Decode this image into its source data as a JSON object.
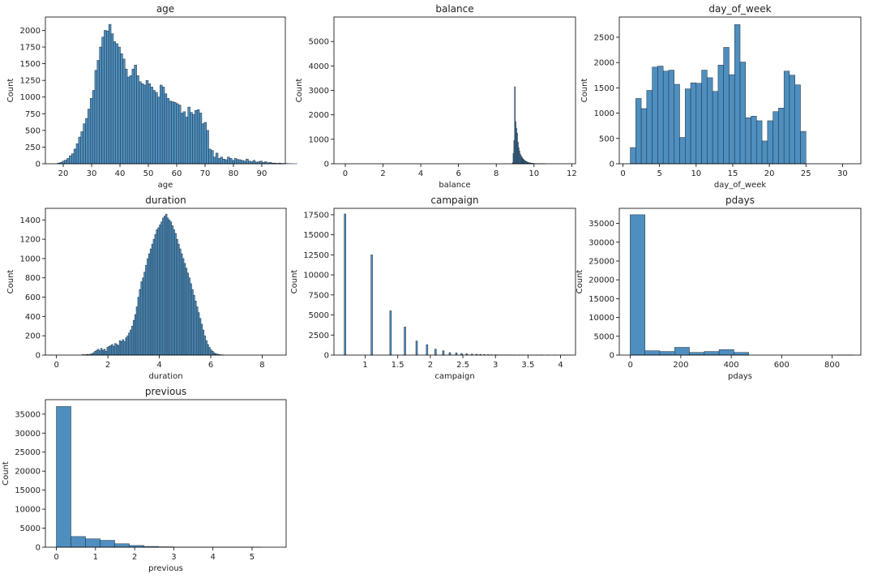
{
  "figure": {
    "style": {
      "bar_fill": "#4e8fbf",
      "bar_edge": "#1f2f3f",
      "axis_color": "#000000",
      "text_color": "#222222"
    }
  },
  "chart_data": [
    {
      "type": "bar",
      "title": "age",
      "xlabel": "age",
      "ylabel": "Count",
      "xlim": [
        13.7,
        98.3
      ],
      "ylim": [
        0,
        2200
      ],
      "xticks": [
        20,
        30,
        40,
        50,
        60,
        70,
        80,
        90
      ],
      "yticks": [
        0,
        250,
        500,
        750,
        1000,
        1250,
        1500,
        1750,
        2000
      ],
      "bins": {
        "x_start": 18,
        "width": 0.82,
        "counts": [
          10,
          20,
          40,
          55,
          80,
          120,
          150,
          220,
          300,
          400,
          480,
          600,
          680,
          820,
          980,
          1100,
          1400,
          1550,
          1750,
          1900,
          2000,
          1990,
          2090,
          1950,
          1830,
          1800,
          1750,
          1650,
          1570,
          1420,
          1300,
          1320,
          1420,
          1480,
          1320,
          1230,
          1200,
          1180,
          1250,
          1200,
          1150,
          1100,
          1070,
          1000,
          1180,
          1150,
          1050,
          980,
          940,
          930,
          920,
          900,
          880,
          760,
          780,
          700,
          850,
          770,
          740,
          800,
          810,
          760,
          600,
          620,
          500,
          220,
          200,
          100,
          160,
          80,
          100,
          70,
          60,
          100,
          80,
          50,
          80,
          65,
          60,
          50,
          40,
          70,
          40,
          30,
          50,
          25,
          30,
          40,
          20,
          30,
          15,
          20,
          10,
          10,
          5,
          10,
          5,
          5,
          5,
          3,
          2,
          1,
          1
        ]
      }
    },
    {
      "type": "bar",
      "title": "balance",
      "xlabel": "balance",
      "ylabel": "Count",
      "xlim": [
        -0.6,
        12.2
      ],
      "ylim": [
        0,
        6000
      ],
      "xticks": [
        0,
        2,
        4,
        6,
        8,
        10,
        12
      ],
      "yticks": [
        0,
        1000,
        2000,
        3000,
        4000,
        5000
      ],
      "bins": {
        "x_start": 8.85,
        "width": 0.04,
        "counts": [
          40,
          420,
          950,
          3150,
          1720,
          1450,
          1250,
          880,
          660,
          520,
          400,
          330,
          280,
          230,
          190,
          160,
          130,
          110,
          90,
          75,
          60,
          50,
          40,
          35,
          30,
          25,
          20,
          16,
          12,
          10,
          8,
          6,
          5,
          4,
          3,
          3,
          2,
          2,
          1,
          1,
          1,
          1,
          1
        ]
      }
    },
    {
      "type": "bar",
      "title": "day_of_week",
      "xlabel": "day_of_week",
      "ylabel": "Count",
      "xlim": [
        -0.5,
        32.5
      ],
      "ylim": [
        0,
        2900
      ],
      "xticks": [
        0,
        5,
        10,
        15,
        20,
        25,
        30
      ],
      "yticks": [
        0,
        500,
        1000,
        1500,
        2000,
        2500
      ],
      "bins": {
        "x_start": 1,
        "width": 0.75,
        "counts": [
          320,
          1290,
          1090,
          1450,
          1910,
          1930,
          1830,
          1850,
          1570,
          520,
          1480,
          1600,
          1590,
          1850,
          1700,
          1430,
          1950,
          2300,
          1760,
          2750,
          2010,
          910,
          940,
          850,
          450,
          850,
          1030,
          1100,
          1830,
          1750,
          1560,
          640
        ]
      }
    },
    {
      "type": "bar",
      "title": "duration",
      "xlabel": "duration",
      "ylabel": "Count",
      "xlim": [
        -0.43,
        8.93
      ],
      "ylim": [
        0,
        1520
      ],
      "xticks": [
        0,
        2,
        4,
        6,
        8
      ],
      "yticks": [
        0,
        200,
        400,
        600,
        800,
        1000,
        1200,
        1400
      ],
      "bins": {
        "x_start": 1.0,
        "width": 0.06,
        "counts": [
          5,
          3,
          5,
          8,
          5,
          10,
          15,
          25,
          40,
          50,
          60,
          45,
          70,
          50,
          60,
          40,
          80,
          90,
          100,
          110,
          90,
          120,
          110,
          100,
          150,
          140,
          160,
          140,
          180,
          200,
          230,
          260,
          300,
          360,
          420,
          500,
          600,
          680,
          760,
          800,
          860,
          930,
          1000,
          1050,
          1100,
          1150,
          1200,
          1250,
          1300,
          1320,
          1350,
          1380,
          1420,
          1440,
          1460,
          1420,
          1400,
          1380,
          1340,
          1300,
          1260,
          1200,
          1150,
          1100,
          1050,
          1000,
          950,
          900,
          850,
          800,
          740,
          680,
          620,
          560,
          500,
          440,
          380,
          320,
          260,
          200,
          150,
          110,
          80,
          55,
          40,
          25,
          15,
          10,
          6,
          4,
          3,
          2
        ]
      }
    },
    {
      "type": "bar",
      "title": "campaign",
      "xlabel": "campaign",
      "ylabel": "Count",
      "xlim": [
        0.52,
        4.23
      ],
      "ylim": [
        0,
        18300
      ],
      "xticks": [
        1.0,
        1.5,
        2.0,
        2.5,
        3.0,
        3.5,
        4.0
      ],
      "yticks": [
        0,
        2500,
        5000,
        7500,
        10000,
        12500,
        15000,
        17500
      ],
      "bins": {
        "x_start": 0.69,
        "width": 0.025,
        "x": [
          0.69,
          1.1,
          1.39,
          1.61,
          1.79,
          1.95,
          2.08,
          2.2,
          2.3,
          2.4,
          2.48,
          2.56,
          2.64,
          2.71,
          2.77,
          2.83,
          2.89,
          2.94,
          3.0,
          3.04,
          3.09,
          3.14,
          3.18,
          3.22,
          3.26,
          3.3,
          3.37,
          3.43,
          3.5,
          3.56,
          3.64,
          3.71,
          3.81,
          3.91,
          4.06
        ],
        "counts": [
          17600,
          12500,
          5520,
          3500,
          1760,
          1300,
          740,
          540,
          310,
          280,
          200,
          160,
          120,
          100,
          80,
          60,
          50,
          40,
          35,
          30,
          25,
          20,
          18,
          15,
          12,
          10,
          8,
          6,
          5,
          4,
          3,
          3,
          2,
          2,
          1
        ]
      }
    },
    {
      "type": "bar",
      "title": "pdays",
      "xlabel": "pdays",
      "ylabel": "Count",
      "xlim": [
        -44,
        914
      ],
      "ylim": [
        0,
        39000
      ],
      "xticks": [
        0,
        200,
        400,
        600,
        800
      ],
      "yticks": [
        0,
        5000,
        10000,
        15000,
        20000,
        25000,
        30000,
        35000
      ],
      "bins": {
        "x_start": -1,
        "width": 58.8,
        "counts": [
          37300,
          1150,
          950,
          2050,
          700,
          950,
          1450,
          700,
          0,
          0,
          0,
          0,
          0,
          0,
          15
        ]
      }
    },
    {
      "type": "bar",
      "title": "previous",
      "xlabel": "previous",
      "ylabel": "Count",
      "xlim": [
        -0.28,
        5.87
      ],
      "ylim": [
        0,
        38800
      ],
      "xticks": [
        0,
        1,
        2,
        3,
        4,
        5
      ],
      "yticks": [
        0,
        5000,
        10000,
        15000,
        20000,
        25000,
        30000,
        35000
      ],
      "bins": {
        "x_start": 0,
        "width": 0.373,
        "counts": [
          37000,
          2800,
          2200,
          1800,
          900,
          450,
          200,
          100,
          30,
          20,
          10,
          5,
          3,
          2,
          1
        ]
      }
    }
  ]
}
